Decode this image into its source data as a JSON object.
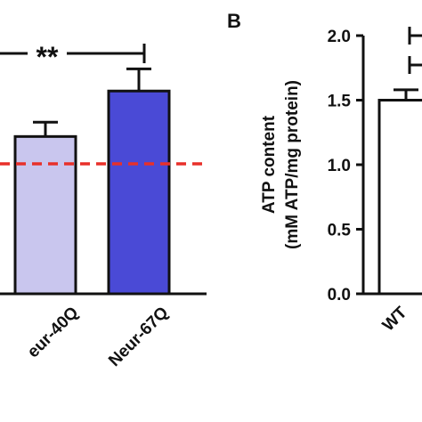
{
  "chart_data": [
    {
      "panel_label": "",
      "type": "bar",
      "categories": [
        "eur-40Q",
        "Neur-67Q"
      ],
      "values": [
        1.21,
        1.56
      ],
      "errors": [
        0.11,
        0.17
      ],
      "colors": [
        "#c9c6ee",
        "#4a4ad6"
      ],
      "reference_line": {
        "y": 1.0,
        "color": "#e8302a",
        "style": "dashed"
      },
      "significance": [
        {
          "label": "**",
          "between": [
            "left edge",
            "Neur-67Q"
          ]
        }
      ],
      "ylim": [
        0.0,
        2.0
      ],
      "xlabel": "",
      "ylabel": "",
      "title": ""
    },
    {
      "panel_label": "B",
      "type": "bar",
      "categories": [
        "WT"
      ],
      "values": [
        1.5
      ],
      "errors": [
        0.08
      ],
      "colors": [
        "#ffffff"
      ],
      "ylim": [
        0.0,
        2.0
      ],
      "yticks": [
        0.0,
        0.5,
        1.0,
        1.5,
        2.0
      ],
      "ytick_labels": [
        "0.0",
        "0.5",
        "1.0",
        "1.5",
        "2.0"
      ],
      "ylabel_line1": "ATP content",
      "ylabel_line2": "(mM ATP/mg protein)",
      "xlabel": "",
      "title": ""
    }
  ]
}
